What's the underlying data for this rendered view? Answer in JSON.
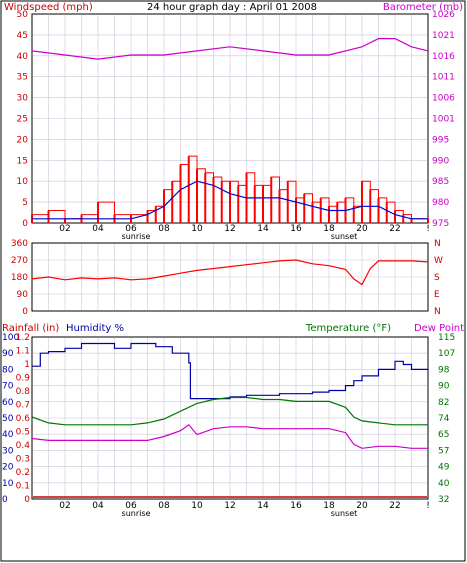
{
  "title": "24 hour graph day : April 01 2008",
  "colors": {
    "wind": "#ff0000",
    "gust": "#ff0000",
    "wind_avg": "#0000cc",
    "wind_dir_dot": "#008800",
    "barometer": "#cc00cc",
    "humidity": "#0000aa",
    "temperature": "#007700",
    "dewpoint": "#cc00cc",
    "rain": "#cc0000",
    "grid": "#c8c8d8"
  },
  "x_axis": {
    "ticks": [
      "02",
      "04",
      "06",
      "08",
      "10",
      "12",
      "14",
      "16",
      "18",
      "20",
      "22",
      "!"
    ],
    "sunrise_label": "sunrise",
    "sunset_label": "sunset"
  },
  "chart_data": [
    {
      "type": "line",
      "id": "wind-baro",
      "left_label": "Windspeed (mph)",
      "right_label": "Barometer (mb)",
      "y_left_ticks": [
        "0",
        "5",
        "10",
        "15",
        "20",
        "25",
        "30",
        "35",
        "40",
        "45",
        "50"
      ],
      "y_right_ticks": [
        "975",
        "980",
        "985",
        "990",
        "995",
        "1001",
        "1006",
        "1011",
        "1016",
        "1021",
        "1026"
      ],
      "ylim_left": [
        0,
        50
      ],
      "ylim_right": [
        975,
        1026
      ],
      "series": [
        {
          "name": "Windspeed (mph)",
          "x_hours": [
            0,
            1,
            2,
            3,
            4,
            5,
            6,
            7,
            7.5,
            8,
            8.5,
            9,
            9.5,
            10,
            10.5,
            11,
            11.5,
            12,
            12.5,
            13,
            13.5,
            14,
            14.5,
            15,
            15.5,
            16,
            16.5,
            17,
            17.5,
            18,
            18.5,
            19,
            19.5,
            20,
            20.5,
            21,
            21.5,
            22,
            22.5,
            23,
            24
          ],
          "values": [
            2,
            3,
            1,
            2,
            5,
            2,
            2,
            3,
            4,
            8,
            10,
            14,
            16,
            13,
            12,
            11,
            10,
            10,
            9,
            12,
            9,
            9,
            11,
            8,
            10,
            6,
            7,
            5,
            6,
            4,
            5,
            6,
            4,
            10,
            8,
            6,
            5,
            3,
            2,
            1,
            1
          ]
        },
        {
          "name": "Average",
          "x_hours": [
            0,
            2,
            4,
            6,
            7,
            8,
            9,
            10,
            11,
            12,
            13,
            14,
            15,
            16,
            17,
            18,
            19,
            20,
            21,
            22,
            23,
            24
          ],
          "values": [
            1,
            1,
            1,
            1,
            2,
            4,
            8,
            10,
            9,
            7,
            6,
            6,
            6,
            5,
            4,
            3,
            3,
            4,
            4,
            2,
            1,
            1
          ]
        },
        {
          "name": "Barometer (mb)",
          "x_hours": [
            0,
            2,
            4,
            6,
            8,
            10,
            12,
            14,
            16,
            18,
            20,
            21,
            22,
            23,
            24
          ],
          "values": [
            1017,
            1016,
            1015,
            1016,
            1016,
            1017,
            1018,
            1017,
            1016,
            1016,
            1018,
            1020,
            1020,
            1018,
            1017
          ]
        }
      ]
    },
    {
      "type": "line",
      "id": "wind-direction",
      "y_left_ticks": [
        "0",
        "90",
        "180",
        "270",
        "360"
      ],
      "y_right_ticks": [
        "N",
        "E",
        "S",
        "W",
        "N"
      ],
      "ylim": [
        0,
        360
      ],
      "series": [
        {
          "name": "Wind direction",
          "x_hours": [
            0,
            1,
            2,
            3,
            4,
            5,
            6,
            7,
            8,
            9,
            10,
            11,
            12,
            13,
            14,
            15,
            16,
            17,
            18,
            19,
            19.5,
            20,
            20.5,
            21,
            22,
            23,
            24
          ],
          "values": [
            170,
            180,
            165,
            175,
            170,
            175,
            165,
            170,
            185,
            200,
            215,
            225,
            235,
            245,
            255,
            265,
            270,
            250,
            240,
            220,
            170,
            140,
            225,
            265,
            265,
            265,
            260
          ]
        }
      ]
    },
    {
      "type": "line",
      "id": "humidity-temp",
      "left_label_rain": "Rainfall (in)",
      "left_label_hum": "Humidity %",
      "right_label_temp": "Temperature (°F)",
      "right_label_dew": "Dew Point",
      "y_rain_ticks": [
        "0",
        "0.1",
        "0.2",
        "0.3",
        "0.4",
        "0.5",
        "0.6",
        "0.7",
        "0.8",
        "0.9",
        "1",
        "1.1",
        "1.2"
      ],
      "y_hum_ticks": [
        "0",
        "10",
        "20",
        "30",
        "40",
        "50",
        "60",
        "70",
        "80",
        "90",
        "100"
      ],
      "y_temp_ticks": [
        "32",
        "40",
        "49",
        "57",
        "65",
        "74",
        "82",
        "90",
        "98",
        "107",
        "115"
      ],
      "ylim_hum": [
        0,
        100
      ],
      "ylim_temp": [
        32,
        115
      ],
      "series": [
        {
          "name": "Humidity %",
          "x_hours": [
            0,
            0.5,
            1,
            1.5,
            2,
            2.5,
            3,
            3.5,
            4,
            4.5,
            5,
            5.5,
            6,
            6.5,
            7,
            7.5,
            8,
            8.5,
            9,
            9.5,
            9.6,
            10,
            11,
            12,
            13,
            14,
            15,
            16,
            17,
            18,
            19,
            19.5,
            20,
            21,
            22,
            22.5,
            23,
            24
          ],
          "values": [
            82,
            90,
            91,
            91,
            93,
            93,
            96,
            96,
            96,
            96,
            93,
            93,
            96,
            96,
            96,
            94,
            94,
            90,
            90,
            84,
            62,
            62,
            62,
            63,
            64,
            64,
            65,
            65,
            66,
            67,
            70,
            73,
            76,
            80,
            85,
            83,
            80,
            79
          ]
        },
        {
          "name": "Temperature (°F)",
          "x_hours": [
            0,
            1,
            2,
            3,
            4,
            5,
            6,
            7,
            8,
            9,
            10,
            11,
            12,
            13,
            14,
            15,
            16,
            17,
            18,
            19,
            19.5,
            20,
            21,
            22,
            23,
            24
          ],
          "values": [
            74,
            71,
            70,
            70,
            70,
            70,
            70,
            71,
            73,
            77,
            81,
            83,
            84,
            84,
            83,
            83,
            82,
            82,
            82,
            79,
            74,
            72,
            71,
            70,
            70,
            70
          ]
        },
        {
          "name": "Dew Point",
          "x_hours": [
            0,
            1,
            2,
            3,
            4,
            5,
            6,
            7,
            8,
            9,
            9.5,
            10,
            11,
            12,
            13,
            14,
            15,
            16,
            17,
            18,
            19,
            19.5,
            20,
            21,
            22,
            23,
            24
          ],
          "values": [
            63,
            62,
            62,
            62,
            62,
            62,
            62,
            62,
            64,
            67,
            70,
            65,
            68,
            69,
            69,
            68,
            68,
            68,
            68,
            68,
            66,
            60,
            58,
            59,
            59,
            58,
            58
          ]
        },
        {
          "name": "Rainfall (in)",
          "x_hours": [
            0,
            24
          ],
          "values": [
            0,
            0
          ]
        }
      ]
    }
  ]
}
